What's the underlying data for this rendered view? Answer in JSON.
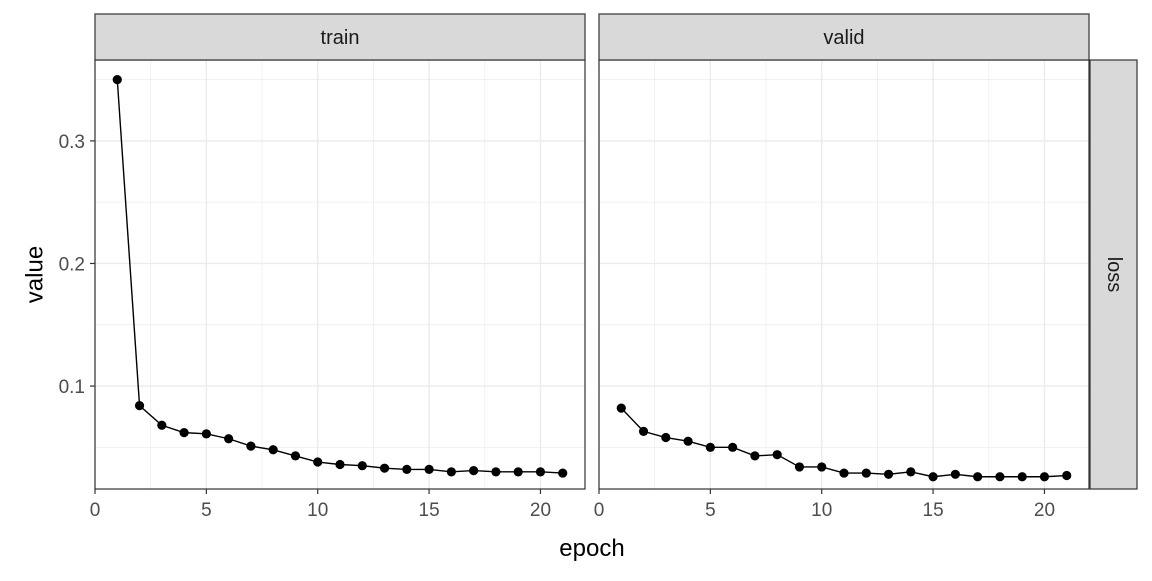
{
  "chart_data": {
    "type": "line",
    "xlabel": "epoch",
    "ylabel": "value",
    "row_strip": "loss",
    "xlim": [
      0,
      22
    ],
    "ylim": [
      0.016,
      0.366
    ],
    "x_ticks": [
      0,
      5,
      10,
      15,
      20
    ],
    "y_ticks": [
      0.1,
      0.2,
      0.3
    ],
    "grid": true,
    "colors": {
      "line": "#000000",
      "point": "#000000",
      "strip_bg": "#d9d9d9",
      "grid": "#ebebeb",
      "panel_border": "#333333"
    },
    "panels": [
      {
        "name": "train",
        "x": [
          1,
          2,
          3,
          4,
          5,
          6,
          7,
          8,
          9,
          10,
          11,
          12,
          13,
          14,
          15,
          16,
          17,
          18,
          19,
          20,
          21
        ],
        "y": [
          0.35,
          0.084,
          0.068,
          0.062,
          0.061,
          0.057,
          0.051,
          0.048,
          0.043,
          0.038,
          0.036,
          0.035,
          0.033,
          0.032,
          0.032,
          0.03,
          0.031,
          0.03,
          0.03,
          0.03,
          0.029
        ]
      },
      {
        "name": "valid",
        "x": [
          1,
          2,
          3,
          4,
          5,
          6,
          7,
          8,
          9,
          10,
          11,
          12,
          13,
          14,
          15,
          16,
          17,
          18,
          19,
          20,
          21
        ],
        "y": [
          0.082,
          0.063,
          0.058,
          0.055,
          0.05,
          0.05,
          0.043,
          0.044,
          0.034,
          0.034,
          0.029,
          0.029,
          0.028,
          0.03,
          0.026,
          0.028,
          0.026,
          0.026,
          0.026,
          0.026,
          0.027
        ]
      }
    ]
  }
}
